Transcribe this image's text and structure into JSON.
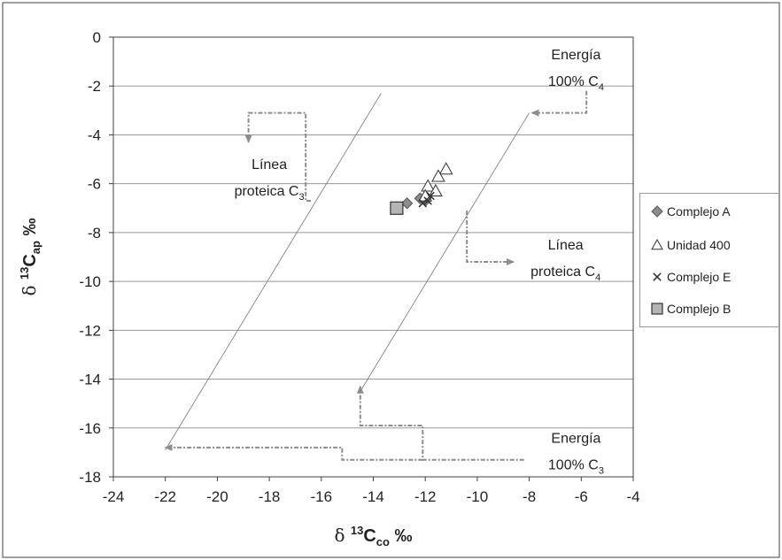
{
  "chart_data": {
    "type": "scatter",
    "title": "",
    "xlabel": "δ 13Cco ‰",
    "ylabel": "δ 13Cap ‰",
    "x_label_parts": {
      "delta": "δ",
      "sup": "13",
      "main": "C",
      "sub": "co",
      "unit": "‰"
    },
    "y_label_parts": {
      "delta": "δ",
      "sup": "13",
      "main": "C",
      "sub": "ap",
      "unit": "‰"
    },
    "xlim": [
      -24,
      -4
    ],
    "ylim": [
      -18,
      0
    ],
    "x_ticks": [
      -24,
      -22,
      -20,
      -18,
      -16,
      -14,
      -12,
      -10,
      -8,
      -6,
      -4
    ],
    "y_ticks": [
      0,
      -2,
      -4,
      -6,
      -8,
      -10,
      -12,
      -14,
      -16,
      -18
    ],
    "x_tick_labels": [
      "-24",
      "-22",
      "-20",
      "-18",
      "-16",
      "-14",
      "-12",
      "-10",
      "-8",
      "-6",
      "-4"
    ],
    "y_tick_labels": [
      "0",
      "-2",
      "-4",
      "-6",
      "-8",
      "-10",
      "-12",
      "-14",
      "-16",
      "-18"
    ],
    "grid": "horizontal",
    "legend_position": "right",
    "series": [
      {
        "name": "Complejo A",
        "marker": "diamond",
        "color": "#8c8c8c",
        "points": [
          [
            -12.7,
            -6.8
          ],
          [
            -12.2,
            -6.6
          ],
          [
            -12.0,
            -6.7
          ]
        ]
      },
      {
        "name": "Unidad 400",
        "marker": "triangle",
        "color": "#ffffff",
        "points": [
          [
            -11.2,
            -5.4
          ],
          [
            -11.5,
            -5.7
          ],
          [
            -11.9,
            -6.1
          ],
          [
            -11.6,
            -6.3
          ],
          [
            -12.0,
            -6.5
          ]
        ]
      },
      {
        "name": "Complejo E",
        "marker": "x",
        "color": "#333333",
        "points": [
          [
            -12.1,
            -6.8
          ],
          [
            -11.9,
            -6.7
          ],
          [
            -11.8,
            -6.5
          ]
        ]
      },
      {
        "name": "Complejo B",
        "marker": "square",
        "color": "#b4b4b4",
        "points": [
          [
            -13.1,
            -7.0
          ]
        ]
      }
    ],
    "reference_lines": [
      {
        "name": "Línea proteica C3",
        "from": [
          -22.0,
          -16.9
        ],
        "to": [
          -13.7,
          -2.3
        ]
      },
      {
        "name": "Línea proteica C4",
        "from": [
          -14.5,
          -14.5
        ],
        "to": [
          -8.0,
          -3.1
        ]
      }
    ],
    "annotations": [
      {
        "lines": [
          "Línea",
          "proteica C"
        ],
        "subscript": "3",
        "x": -18.0,
        "y": -5.4,
        "anchor": "middle"
      },
      {
        "lines": [
          "Energía",
          "100% C"
        ],
        "subscript": "4",
        "x": -6.2,
        "y": -0.9,
        "anchor": "middle"
      },
      {
        "lines": [
          "Línea",
          "proteica C"
        ],
        "subscript": "4",
        "x": -6.6,
        "y": -8.7,
        "anchor": "middle"
      },
      {
        "lines": [
          "Energía",
          "100% C"
        ],
        "subscript": "3",
        "x": -6.2,
        "y": -16.6,
        "anchor": "middle"
      }
    ],
    "connectors": [
      {
        "points": [
          [
            -5.8,
            -2.2
          ],
          [
            -5.8,
            -3.1
          ],
          [
            -7.9,
            -3.1
          ]
        ],
        "arrow": "end"
      },
      {
        "points": [
          [
            -16.4,
            -6.7
          ],
          [
            -16.6,
            -6.7
          ],
          [
            -16.6,
            -3.1
          ],
          [
            -18.8,
            -3.1
          ],
          [
            -18.8,
            -4.3
          ]
        ],
        "arrow": "end"
      },
      {
        "points": [
          [
            -10.4,
            -7.1
          ],
          [
            -10.4,
            -9.2
          ],
          [
            -8.6,
            -9.2
          ]
        ],
        "arrow": "end"
      },
      {
        "points": [
          [
            -8.2,
            -17.3
          ],
          [
            -12.1,
            -17.3
          ],
          [
            -12.1,
            -15.9
          ],
          [
            -14.5,
            -15.9
          ],
          [
            -14.5,
            -14.3
          ]
        ],
        "arrow": "end"
      },
      {
        "points": [
          [
            -12.1,
            -17.3
          ],
          [
            -15.2,
            -17.3
          ],
          [
            -15.2,
            -16.8
          ],
          [
            -22.0,
            -16.8
          ]
        ],
        "arrow": "end"
      }
    ]
  },
  "legend": {
    "items": [
      {
        "label": "Complejo A",
        "marker": "diamond",
        "fill": "#8c8c8c"
      },
      {
        "label": "Unidad 400",
        "marker": "triangle",
        "fill": "#ffffff"
      },
      {
        "label": "Complejo E",
        "marker": "x",
        "fill": "#333333"
      },
      {
        "label": "Complejo B",
        "marker": "square",
        "fill": "#b4b4b4"
      }
    ]
  },
  "colors": {
    "axis": "#404040",
    "grid": "#999999",
    "connector": "#8c8c8c",
    "text": "#222222",
    "refline": "#777777"
  }
}
